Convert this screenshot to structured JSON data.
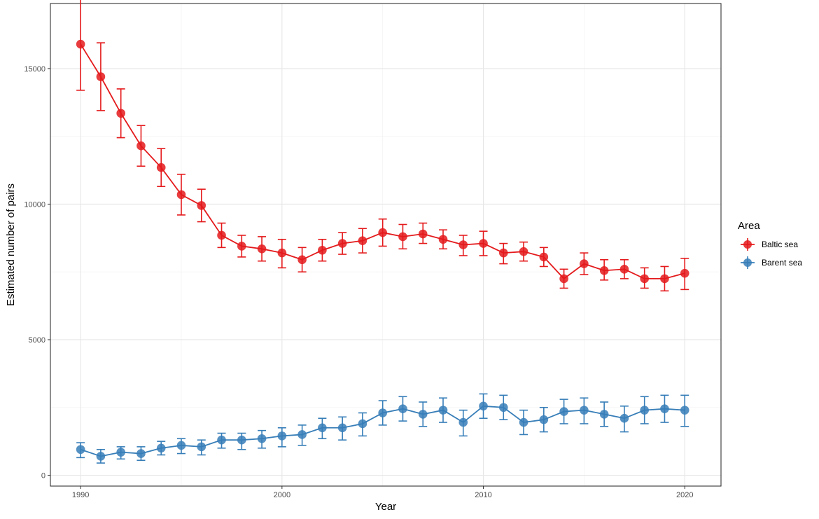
{
  "chart_data": {
    "type": "line",
    "title": "",
    "xlabel": "Year",
    "ylabel": "Estimated number of pairs",
    "xlim": [
      1988.5,
      2021.8
    ],
    "ylim": [
      -400,
      17400
    ],
    "x_ticks": [
      1990,
      2000,
      2010,
      2020
    ],
    "x_tick_labels": [
      "1990",
      "2000",
      "2010",
      "2020"
    ],
    "y_ticks": [
      0,
      5000,
      10000,
      15000
    ],
    "y_tick_labels": [
      "0",
      "5000",
      "10000",
      "15000"
    ],
    "grid": true,
    "legend": {
      "title": "Area",
      "position": "right"
    },
    "x": [
      1990,
      1991,
      1992,
      1993,
      1994,
      1995,
      1996,
      1997,
      1998,
      1999,
      2000,
      2001,
      2002,
      2003,
      2004,
      2005,
      2006,
      2007,
      2008,
      2009,
      2010,
      2011,
      2012,
      2013,
      2014,
      2015,
      2016,
      2017,
      2018,
      2019,
      2020
    ],
    "series": [
      {
        "name": "Baltic sea",
        "color": "#e41a1c",
        "values": [
          15900,
          14700,
          13350,
          12150,
          11350,
          10350,
          9950,
          8850,
          8450,
          8350,
          8200,
          7950,
          8300,
          8550,
          8650,
          8950,
          8800,
          8900,
          8700,
          8500,
          8550,
          8200,
          8250,
          8050,
          7250,
          7800,
          7550,
          7600,
          7250,
          7250,
          7450
        ],
        "lower": [
          14200,
          13450,
          12450,
          11400,
          10650,
          9600,
          9350,
          8400,
          8050,
          7900,
          7650,
          7500,
          7900,
          8150,
          8200,
          8450,
          8350,
          8550,
          8350,
          8100,
          8100,
          7800,
          7900,
          7700,
          6900,
          7400,
          7200,
          7250,
          6900,
          6800,
          6850
        ],
        "upper": [
          17550,
          15950,
          14250,
          12900,
          12050,
          11100,
          10550,
          9300,
          8850,
          8800,
          8700,
          8400,
          8700,
          8950,
          9100,
          9450,
          9250,
          9300,
          9050,
          8850,
          9000,
          8550,
          8600,
          8400,
          7600,
          8200,
          7950,
          7950,
          7650,
          7700,
          8000
        ]
      },
      {
        "name": "Barent sea",
        "color": "#377eb8",
        "values": [
          950,
          700,
          850,
          800,
          1000,
          1100,
          1050,
          1300,
          1300,
          1350,
          1450,
          1500,
          1750,
          1750,
          1900,
          2300,
          2450,
          2250,
          2400,
          1950,
          2550,
          2500,
          1950,
          2050,
          2350,
          2400,
          2250,
          2100,
          2400,
          2450,
          2400
        ],
        "lower": [
          650,
          450,
          600,
          550,
          750,
          800,
          750,
          1000,
          950,
          1000,
          1050,
          1100,
          1350,
          1300,
          1450,
          1850,
          2000,
          1800,
          1950,
          1450,
          2100,
          2050,
          1500,
          1600,
          1900,
          1900,
          1800,
          1600,
          1900,
          1950,
          1800
        ],
        "upper": [
          1200,
          950,
          1050,
          1050,
          1250,
          1350,
          1300,
          1550,
          1550,
          1650,
          1750,
          1850,
          2100,
          2150,
          2300,
          2750,
          2900,
          2700,
          2850,
          2400,
          3000,
          2950,
          2400,
          2500,
          2800,
          2850,
          2700,
          2550,
          2900,
          2950,
          2950
        ]
      }
    ]
  }
}
